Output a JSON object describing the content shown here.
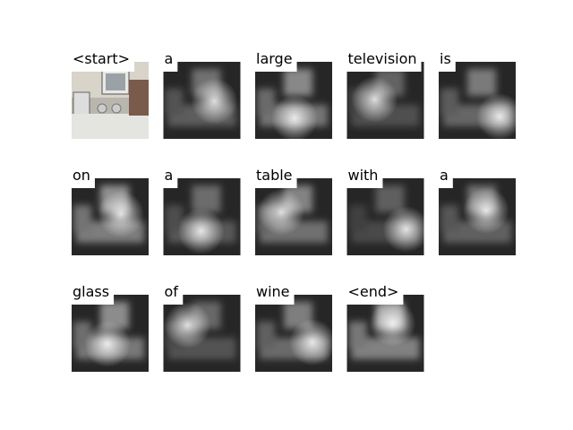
{
  "words": [
    "<start>",
    "a",
    "large",
    "television",
    "is",
    "on",
    "a",
    "table",
    "with",
    "a",
    "glass",
    "of",
    "wine",
    "<end>"
  ]
}
